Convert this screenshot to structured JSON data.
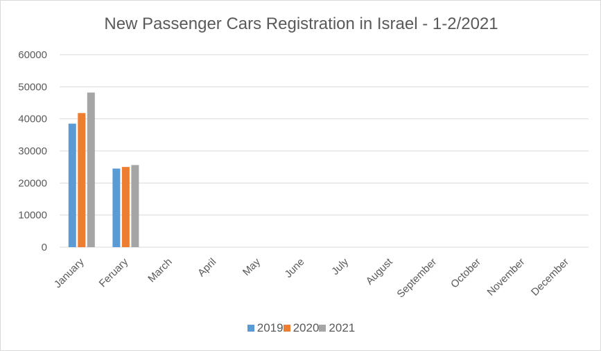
{
  "chart_data": {
    "type": "bar",
    "title": "New Passenger Cars Registration in Israel - 1-2/2021",
    "categories": [
      "January",
      "Feruary",
      "March",
      "April",
      "May",
      "June",
      "July",
      "August",
      "September",
      "October",
      "November",
      "December"
    ],
    "series": [
      {
        "name": "2019",
        "color": "#5b9bd5",
        "values": [
          38500,
          24500,
          null,
          null,
          null,
          null,
          null,
          null,
          null,
          null,
          null,
          null
        ]
      },
      {
        "name": "2020",
        "color": "#ed7d31",
        "values": [
          41800,
          25000,
          null,
          null,
          null,
          null,
          null,
          null,
          null,
          null,
          null,
          null
        ]
      },
      {
        "name": "2021",
        "color": "#a5a5a5",
        "values": [
          48200,
          25600,
          null,
          null,
          null,
          null,
          null,
          null,
          null,
          null,
          null,
          null
        ]
      }
    ],
    "ylim": [
      0,
      60000
    ],
    "yticks": [
      "0",
      "10000",
      "20000",
      "30000",
      "40000",
      "50000",
      "60000"
    ],
    "grid": true,
    "legend_position": "bottom"
  }
}
